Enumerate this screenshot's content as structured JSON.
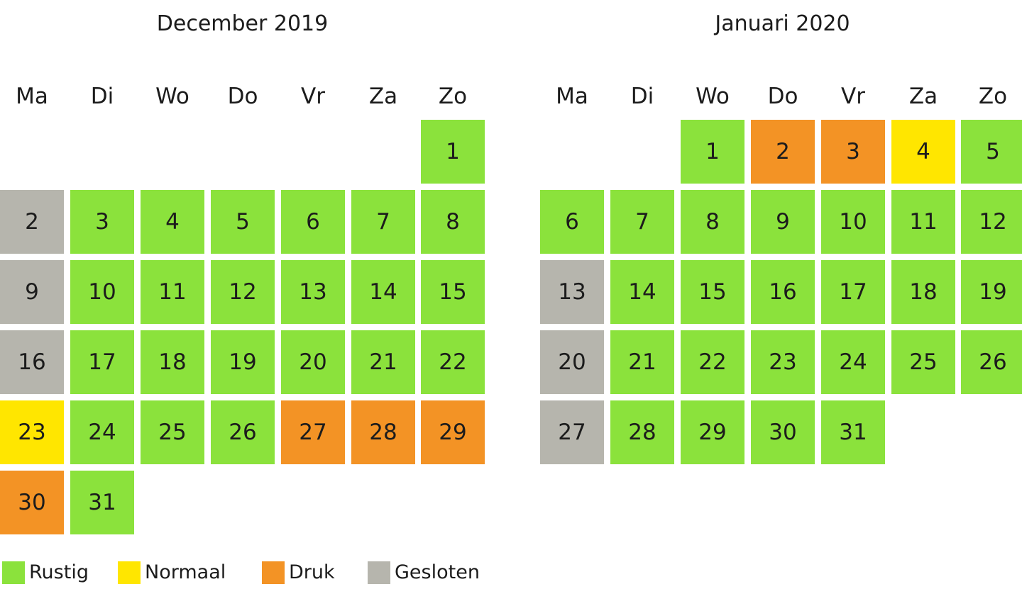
{
  "legend": [
    {
      "key": "rustig",
      "label": "Rustig",
      "color": "#8be23c"
    },
    {
      "key": "normaal",
      "label": "Normaal",
      "color": "#ffe600"
    },
    {
      "key": "druk",
      "label": "Druk",
      "color": "#f39325"
    },
    {
      "key": "gesloten",
      "label": "Gesloten",
      "color": "#b6b5ad"
    }
  ],
  "weekdays": [
    "Ma",
    "Di",
    "Wo",
    "Do",
    "Vr",
    "Za",
    "Zo"
  ],
  "calendars": [
    {
      "id": "december",
      "title": "December 2019",
      "weeks": [
        [
          null,
          null,
          null,
          null,
          null,
          null,
          {
            "day": "1",
            "status": "rustig"
          }
        ],
        [
          {
            "day": "2",
            "status": "gesloten"
          },
          {
            "day": "3",
            "status": "rustig"
          },
          {
            "day": "4",
            "status": "rustig"
          },
          {
            "day": "5",
            "status": "rustig"
          },
          {
            "day": "6",
            "status": "rustig"
          },
          {
            "day": "7",
            "status": "rustig"
          },
          {
            "day": "8",
            "status": "rustig"
          }
        ],
        [
          {
            "day": "9",
            "status": "gesloten"
          },
          {
            "day": "10",
            "status": "rustig"
          },
          {
            "day": "11",
            "status": "rustig"
          },
          {
            "day": "12",
            "status": "rustig"
          },
          {
            "day": "13",
            "status": "rustig"
          },
          {
            "day": "14",
            "status": "rustig"
          },
          {
            "day": "15",
            "status": "rustig"
          }
        ],
        [
          {
            "day": "16",
            "status": "gesloten"
          },
          {
            "day": "17",
            "status": "rustig"
          },
          {
            "day": "18",
            "status": "rustig"
          },
          {
            "day": "19",
            "status": "rustig"
          },
          {
            "day": "20",
            "status": "rustig"
          },
          {
            "day": "21",
            "status": "rustig"
          },
          {
            "day": "22",
            "status": "rustig"
          }
        ],
        [
          {
            "day": "23",
            "status": "normaal"
          },
          {
            "day": "24",
            "status": "rustig"
          },
          {
            "day": "25",
            "status": "rustig"
          },
          {
            "day": "26",
            "status": "rustig"
          },
          {
            "day": "27",
            "status": "druk"
          },
          {
            "day": "28",
            "status": "druk"
          },
          {
            "day": "29",
            "status": "druk"
          }
        ],
        [
          {
            "day": "30",
            "status": "druk"
          },
          {
            "day": "31",
            "status": "rustig"
          },
          null,
          null,
          null,
          null,
          null
        ]
      ]
    },
    {
      "id": "january",
      "title": "Januari 2020",
      "weeks": [
        [
          null,
          null,
          {
            "day": "1",
            "status": "rustig"
          },
          {
            "day": "2",
            "status": "druk"
          },
          {
            "day": "3",
            "status": "druk"
          },
          {
            "day": "4",
            "status": "normaal"
          },
          {
            "day": "5",
            "status": "rustig"
          }
        ],
        [
          {
            "day": "6",
            "status": "rustig"
          },
          {
            "day": "7",
            "status": "rustig"
          },
          {
            "day": "8",
            "status": "rustig"
          },
          {
            "day": "9",
            "status": "rustig"
          },
          {
            "day": "10",
            "status": "rustig"
          },
          {
            "day": "11",
            "status": "rustig"
          },
          {
            "day": "12",
            "status": "rustig"
          }
        ],
        [
          {
            "day": "13",
            "status": "gesloten"
          },
          {
            "day": "14",
            "status": "rustig"
          },
          {
            "day": "15",
            "status": "rustig"
          },
          {
            "day": "16",
            "status": "rustig"
          },
          {
            "day": "17",
            "status": "rustig"
          },
          {
            "day": "18",
            "status": "rustig"
          },
          {
            "day": "19",
            "status": "rustig"
          }
        ],
        [
          {
            "day": "20",
            "status": "gesloten"
          },
          {
            "day": "21",
            "status": "rustig"
          },
          {
            "day": "22",
            "status": "rustig"
          },
          {
            "day": "23",
            "status": "rustig"
          },
          {
            "day": "24",
            "status": "rustig"
          },
          {
            "day": "25",
            "status": "rustig"
          },
          {
            "day": "26",
            "status": "rustig"
          }
        ],
        [
          {
            "day": "27",
            "status": "gesloten"
          },
          {
            "day": "28",
            "status": "rustig"
          },
          {
            "day": "29",
            "status": "rustig"
          },
          {
            "day": "30",
            "status": "rustig"
          },
          {
            "day": "31",
            "status": "rustig"
          },
          null,
          null
        ]
      ]
    }
  ]
}
